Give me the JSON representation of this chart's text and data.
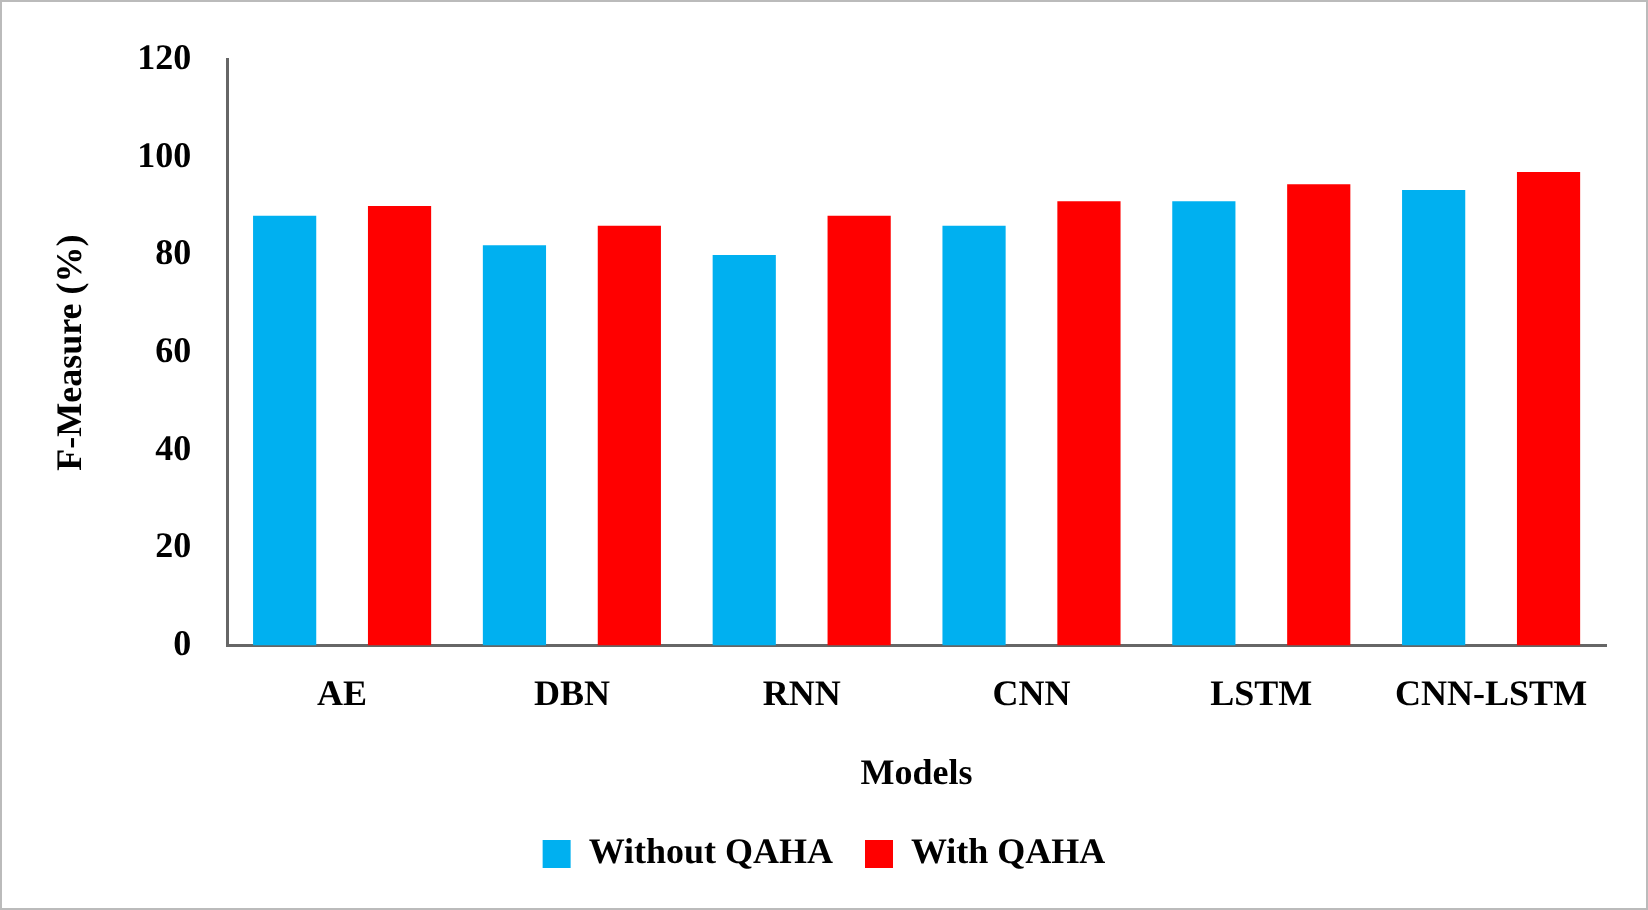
{
  "chart_data": {
    "type": "bar",
    "xlabel": "Models",
    "ylabel": "F-Measure (%)",
    "categories": [
      "AE",
      "DBN",
      "RNN",
      "CNN",
      "LSTM",
      "CNN-LSTM"
    ],
    "series": [
      {
        "name": "Without QAHA",
        "color": "#00b0f0",
        "values": [
          88,
          82,
          80,
          86,
          91,
          93.3
        ]
      },
      {
        "name": "With QAHA",
        "color": "#ff0000",
        "values": [
          90,
          86,
          88,
          91,
          94.5,
          97
        ]
      }
    ],
    "ylim": [
      0,
      120
    ],
    "yticks": [
      0,
      20,
      40,
      60,
      80,
      100,
      120
    ],
    "grid": false,
    "legend": "bottom"
  }
}
